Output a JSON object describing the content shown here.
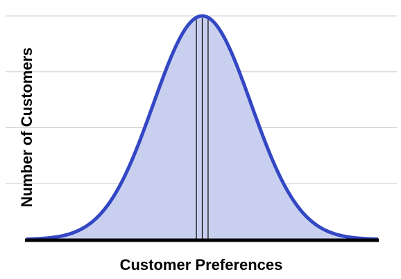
{
  "chart_data": {
    "type": "area",
    "xlabel": "Customer Preferences",
    "ylabel": "Number of Customers",
    "distribution": "normal",
    "x": [
      -3.6,
      -3.3,
      -3.0,
      -2.7,
      -2.4,
      -2.1,
      -1.8,
      -1.5,
      -1.2,
      -0.9,
      -0.6,
      -0.3,
      0.0,
      0.3,
      0.6,
      0.9,
      1.2,
      1.5,
      1.8,
      2.1,
      2.4,
      2.7,
      3.0,
      3.3,
      3.6
    ],
    "y": [
      0.0015,
      0.0043,
      0.0111,
      0.0261,
      0.0561,
      0.1103,
      0.1979,
      0.3247,
      0.4868,
      0.667,
      0.8353,
      0.956,
      1.0,
      0.956,
      0.8353,
      0.667,
      0.4868,
      0.3247,
      0.1979,
      0.1103,
      0.0561,
      0.0261,
      0.0111,
      0.0043,
      0.0015
    ],
    "xlim": [
      -3.6,
      3.6
    ],
    "ylim": [
      0,
      1.0
    ],
    "grid": true,
    "grid_levels": [
      0.25,
      0.5,
      0.75,
      1.0
    ],
    "center_lines": [
      -0.12,
      0.0,
      0.12
    ],
    "colors": {
      "curve": "#3347c4",
      "fill": "#c9d0ef",
      "grid": "#cccccc",
      "baseline": "#000000",
      "center_lines": "#000000"
    }
  }
}
